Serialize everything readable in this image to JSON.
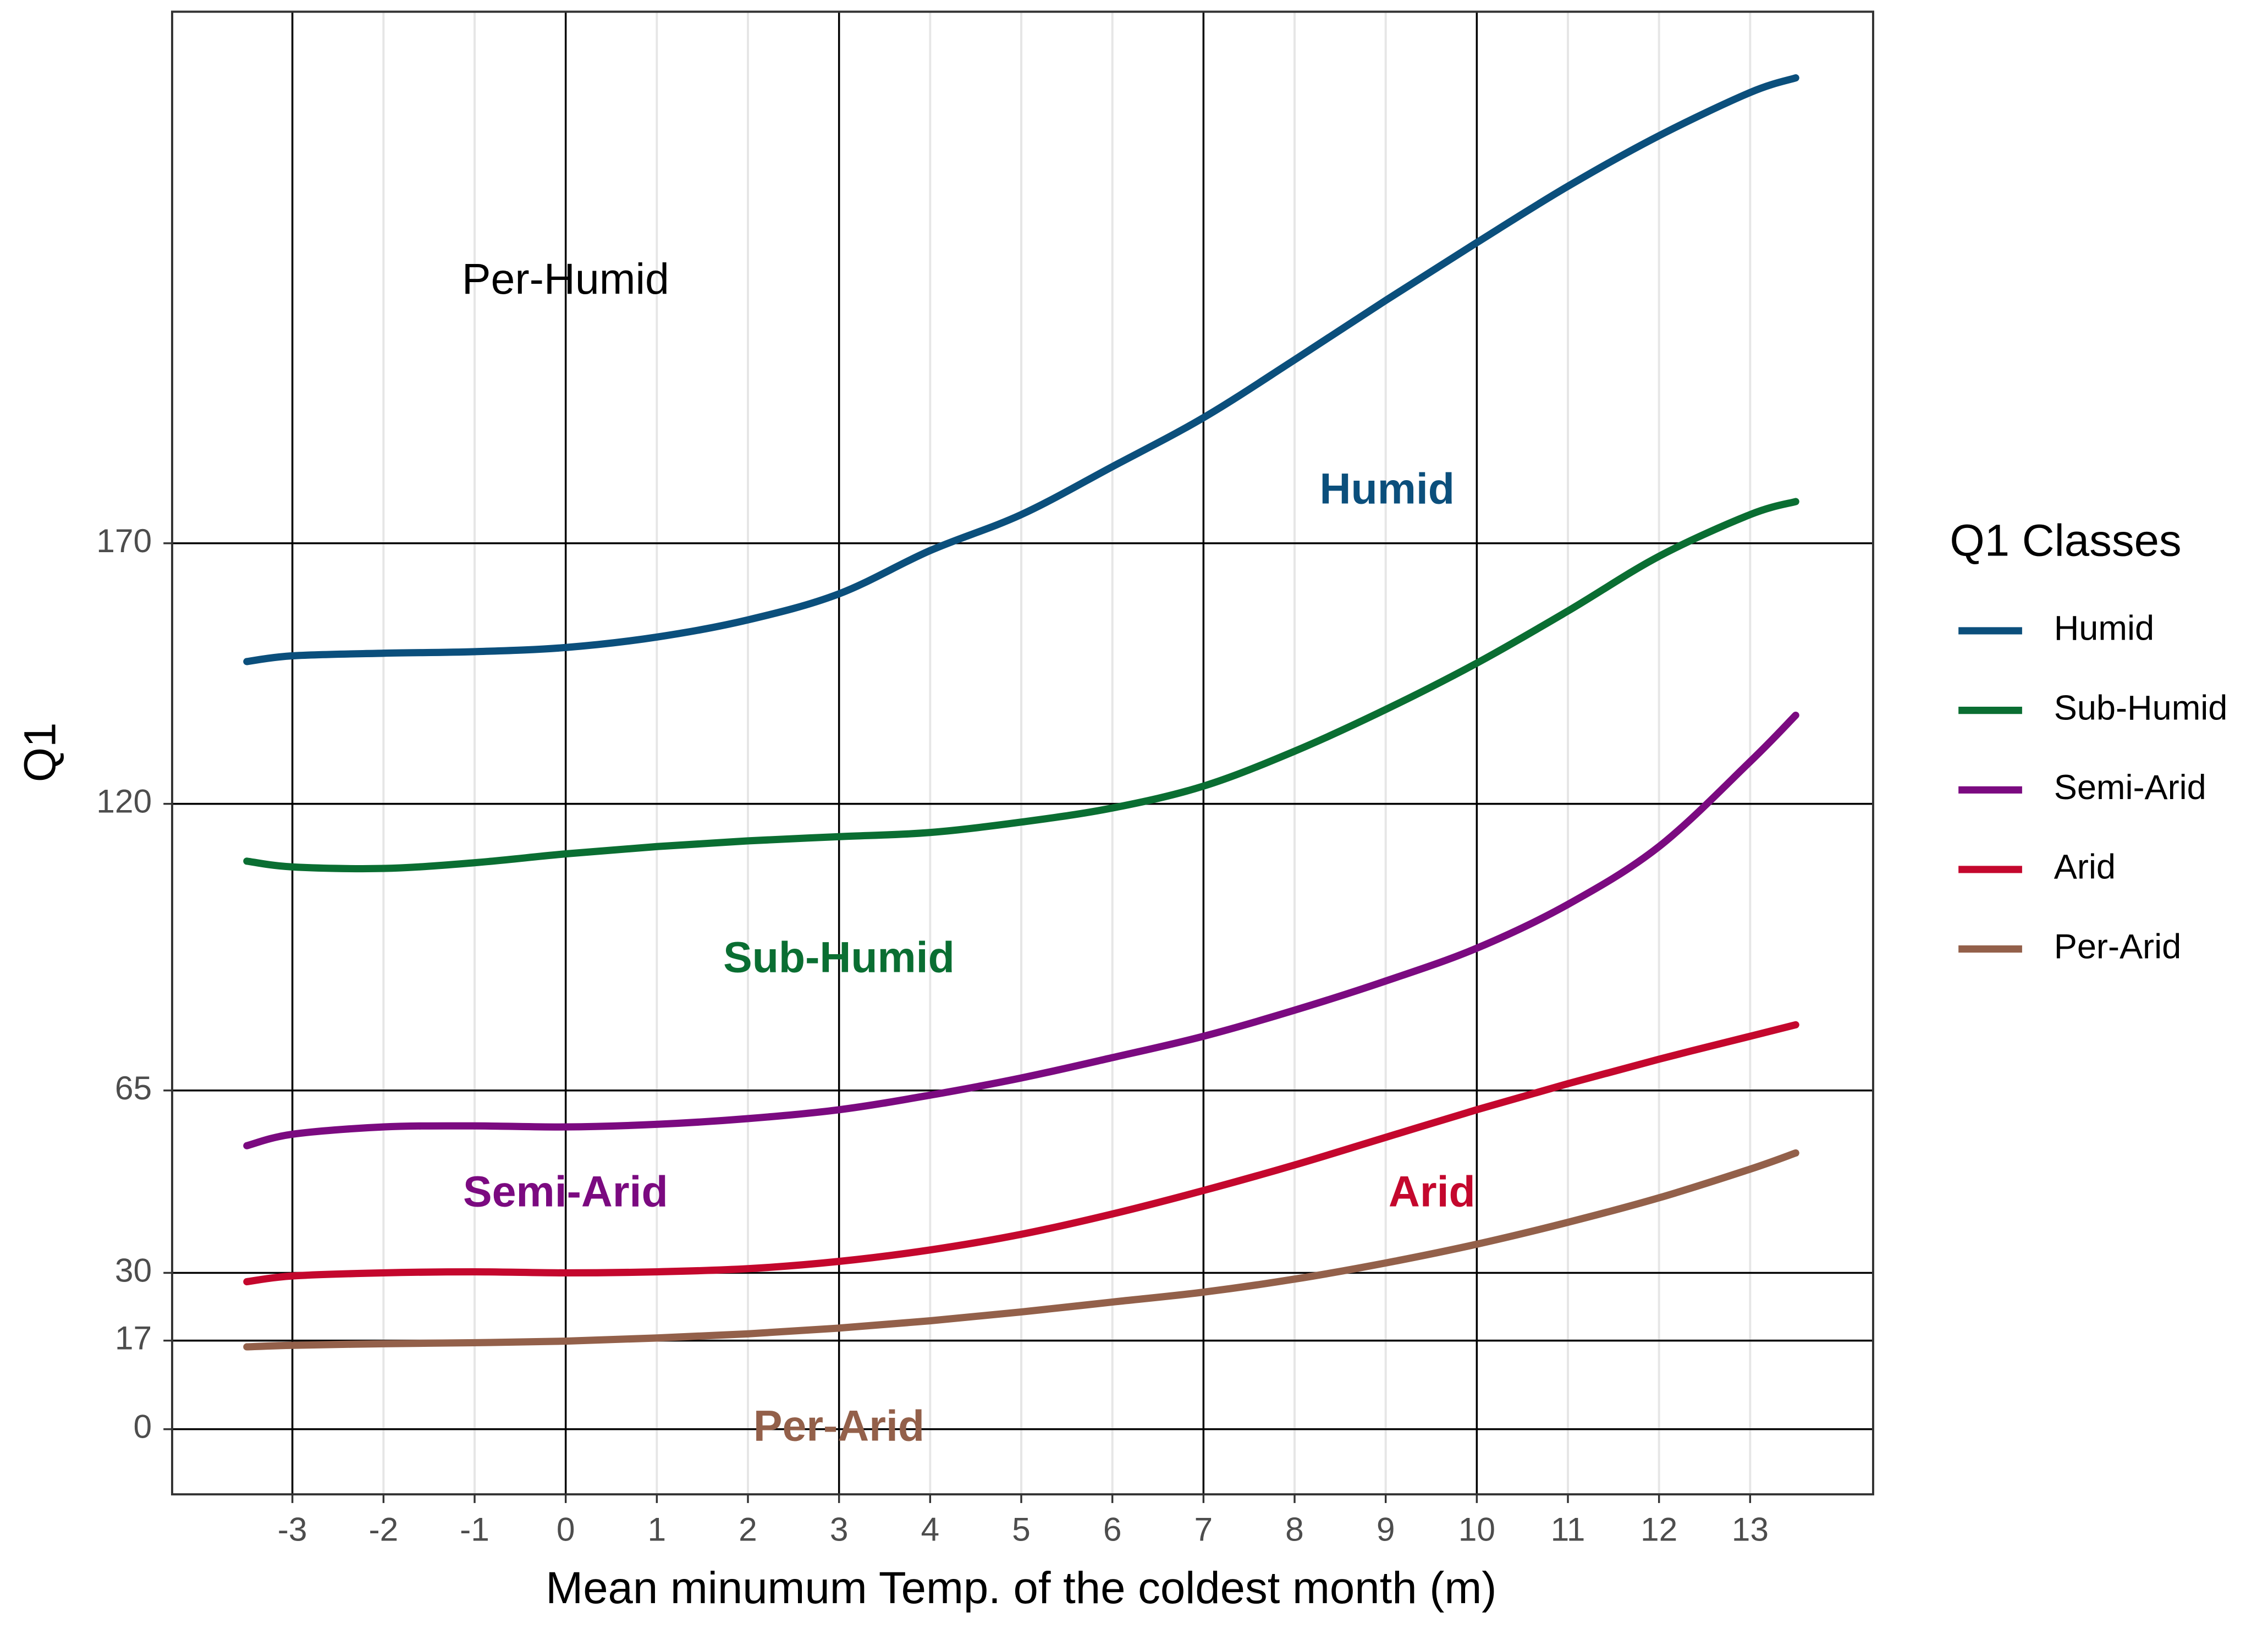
{
  "chart_data": {
    "type": "line",
    "x_label": "Mean minumum Temp. of the coldest month (m)",
    "y_label": "Q1",
    "legend_title": "Q1 Classes",
    "legend_position": "right",
    "grid": true,
    "xlim": [
      -4.32,
      14.35
    ],
    "ylim": [
      -12.5,
      272
    ],
    "xticks": [
      -3,
      -2,
      -1,
      0,
      1,
      2,
      3,
      4,
      5,
      6,
      7,
      8,
      9,
      10,
      11,
      12,
      13
    ],
    "yticks": [
      0,
      17,
      30,
      65,
      120,
      170
    ],
    "vlines": [
      -3,
      0,
      3,
      7,
      10
    ],
    "hlines": [
      0,
      17,
      30,
      65,
      120,
      170
    ],
    "x": [
      -3.5,
      -3,
      -2,
      -1,
      0,
      1,
      2,
      3,
      4,
      5,
      6,
      7,
      8,
      9,
      10,
      11,
      12,
      13,
      13.5
    ],
    "series": [
      {
        "name": "Humid",
        "color": "#0b4f7c",
        "values": [
          147.3,
          148.4,
          148.9,
          149.2,
          150.0,
          152.0,
          155.3,
          160.3,
          168.6,
          175.5,
          184.7,
          194.1,
          205.2,
          216.6,
          227.7,
          238.5,
          248.2,
          256.5,
          259.3
        ]
      },
      {
        "name": "Sub-Humid",
        "color": "#0a6e32",
        "values": [
          109.0,
          107.9,
          107.6,
          108.7,
          110.4,
          111.8,
          112.9,
          113.7,
          114.5,
          116.5,
          119.2,
          123.4,
          130.1,
          138.1,
          147.0,
          157.0,
          167.5,
          175.5,
          178.0
        ]
      },
      {
        "name": "Semi-Arid",
        "color": "#7b0a80",
        "values": [
          54.4,
          56.6,
          58.0,
          58.2,
          58.0,
          58.5,
          59.6,
          61.3,
          64.1,
          67.4,
          71.3,
          75.4,
          80.4,
          86.0,
          92.3,
          100.7,
          111.8,
          128.1,
          137.0
        ]
      },
      {
        "name": "Arid",
        "color": "#c4072d",
        "values": [
          28.3,
          29.4,
          30.0,
          30.2,
          30.0,
          30.2,
          30.8,
          32.2,
          34.4,
          37.4,
          41.3,
          45.8,
          50.7,
          56.0,
          61.3,
          66.3,
          71.0,
          75.4,
          77.6
        ]
      },
      {
        "name": "Per-Arid",
        "color": "#93604a",
        "values": [
          15.8,
          16.1,
          16.4,
          16.6,
          16.9,
          17.5,
          18.3,
          19.4,
          20.8,
          22.5,
          24.4,
          26.3,
          28.8,
          31.9,
          35.5,
          39.7,
          44.4,
          49.9,
          53.0
        ]
      }
    ],
    "annotations": [
      {
        "text": "Per-Humid",
        "color": "#000000",
        "bold": false
      },
      {
        "text": "Humid",
        "color": "#0b4f7c",
        "bold": true
      },
      {
        "text": "Sub-Humid",
        "color": "#0a6e32",
        "bold": true
      },
      {
        "text": "Semi-Arid",
        "color": "#7b0a80",
        "bold": true
      },
      {
        "text": "Arid",
        "color": "#c4072d",
        "bold": true
      },
      {
        "text": "Per-Arid",
        "color": "#93604a",
        "bold": true
      }
    ]
  }
}
